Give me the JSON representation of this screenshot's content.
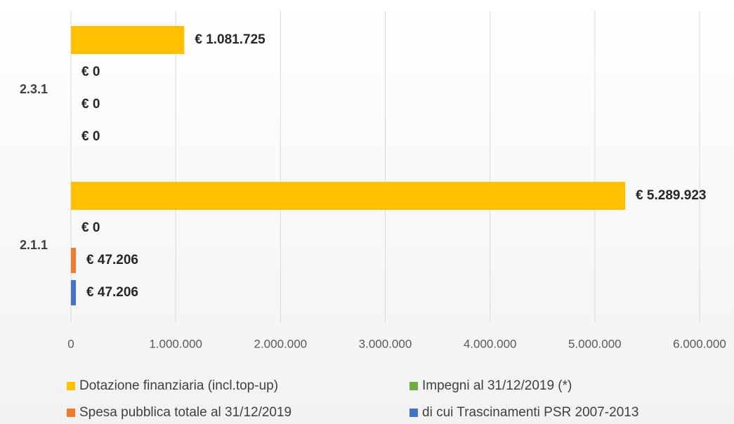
{
  "chart_data": {
    "type": "hbar",
    "categories": [
      "2.3.1",
      "2.1.1"
    ],
    "series": [
      {
        "name": "Dotazione finanziaria (incl.top-up)",
        "color": "#FFC000",
        "values": [
          1081725,
          5289923
        ],
        "value_labels": [
          "€ 1.081.725",
          "€ 5.289.923"
        ]
      },
      {
        "name": "Impegni al 31/12/2019 (*)",
        "color": "#70AD47",
        "values": [
          0,
          0
        ],
        "value_labels": [
          "€ 0",
          "€ 0"
        ]
      },
      {
        "name": "Spesa pubblica totale al 31/12/2019",
        "color": "#ED7D31",
        "values": [
          0,
          47206
        ],
        "value_labels": [
          "€ 0",
          "€ 47.206"
        ]
      },
      {
        "name": "di cui Trascinamenti PSR 2007-2013",
        "color": "#4472C4",
        "values": [
          0,
          47206
        ],
        "value_labels": [
          "€ 0",
          "€ 47.206"
        ]
      }
    ],
    "xlim": [
      0,
      6000000
    ],
    "xticks": [
      0,
      {
        "value": 1000000,
        "label": "1.000.000"
      },
      {
        "value": 2000000,
        "label": "2.000.000"
      },
      {
        "value": 3000000,
        "label": "3.000.000"
      },
      {
        "value": 4000000,
        "label": "4.000.000"
      },
      {
        "value": 5000000,
        "label": "5.000.000"
      },
      {
        "value": 6000000,
        "label": "6.000.000"
      }
    ],
    "grid": true,
    "legend": "bottom"
  }
}
